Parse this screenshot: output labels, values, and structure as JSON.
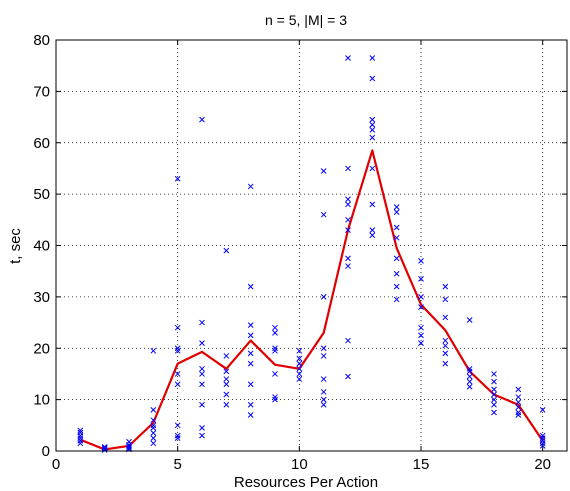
{
  "chart_data": {
    "type": "scatter",
    "title": "n = 5, |M| = 3",
    "xlabel": "Resources Per Action",
    "ylabel": "t, sec",
    "xlim": [
      0,
      21
    ],
    "ylim": [
      0,
      80
    ],
    "xticks": [
      0,
      5,
      10,
      15,
      20
    ],
    "yticks": [
      0,
      10,
      20,
      30,
      40,
      50,
      60,
      70,
      80
    ],
    "grid": true,
    "colors": {
      "points": "#0000ff",
      "line": "#e00000"
    },
    "series": [
      {
        "type": "scatter",
        "marker": "x",
        "points": [
          [
            1,
            1.5
          ],
          [
            1,
            2.0
          ],
          [
            1,
            2.5
          ],
          [
            1,
            3.0
          ],
          [
            1,
            3.6
          ],
          [
            1,
            4.0
          ],
          [
            2,
            0.2
          ],
          [
            2,
            0.4
          ],
          [
            2,
            0.6
          ],
          [
            2,
            0.8
          ],
          [
            3,
            0.3
          ],
          [
            3,
            0.6
          ],
          [
            3,
            0.9
          ],
          [
            3,
            1.2
          ],
          [
            3,
            1.8
          ],
          [
            4,
            1.5
          ],
          [
            4,
            2.5
          ],
          [
            4,
            3.5
          ],
          [
            4,
            4.5
          ],
          [
            4,
            5.0
          ],
          [
            4,
            6.0
          ],
          [
            4,
            8.0
          ],
          [
            4,
            19.5
          ],
          [
            5,
            2.5
          ],
          [
            5,
            3.0
          ],
          [
            5,
            5.0
          ],
          [
            5,
            13.0
          ],
          [
            5,
            15.0
          ],
          [
            5,
            19.5
          ],
          [
            5,
            20.0
          ],
          [
            5,
            24.0
          ],
          [
            5,
            53.0
          ],
          [
            6,
            3.0
          ],
          [
            6,
            4.5
          ],
          [
            6,
            9.0
          ],
          [
            6,
            13.0
          ],
          [
            6,
            15.0
          ],
          [
            6,
            16.0
          ],
          [
            6,
            21.0
          ],
          [
            6,
            25.0
          ],
          [
            6,
            64.5
          ],
          [
            7,
            9.0
          ],
          [
            7,
            11.0
          ],
          [
            7,
            13.0
          ],
          [
            7,
            14.0
          ],
          [
            7,
            15.5
          ],
          [
            7,
            18.5
          ],
          [
            7,
            39.0
          ],
          [
            8,
            7.0
          ],
          [
            8,
            9.0
          ],
          [
            8,
            13.0
          ],
          [
            8,
            17.0
          ],
          [
            8,
            19.0
          ],
          [
            8,
            22.5
          ],
          [
            8,
            24.5
          ],
          [
            8,
            32.0
          ],
          [
            8,
            51.5
          ],
          [
            9,
            10.0
          ],
          [
            9,
            10.5
          ],
          [
            9,
            15.0
          ],
          [
            9,
            19.5
          ],
          [
            9,
            20.0
          ],
          [
            9,
            23.0
          ],
          [
            9,
            24.0
          ],
          [
            10,
            14.0
          ],
          [
            10,
            15.0
          ],
          [
            10,
            16.0
          ],
          [
            10,
            17.0
          ],
          [
            10,
            18.0
          ],
          [
            10,
            19.5
          ],
          [
            11,
            9.0
          ],
          [
            11,
            10.0
          ],
          [
            11,
            11.5
          ],
          [
            11,
            14.0
          ],
          [
            11,
            18.5
          ],
          [
            11,
            20.0
          ],
          [
            11,
            30.0
          ],
          [
            11,
            46.0
          ],
          [
            11,
            54.5
          ],
          [
            12,
            14.5
          ],
          [
            12,
            21.5
          ],
          [
            12,
            36.0
          ],
          [
            12,
            37.5
          ],
          [
            12,
            43.0
          ],
          [
            12,
            45.0
          ],
          [
            12,
            48.0
          ],
          [
            12,
            49.0
          ],
          [
            12,
            55.0
          ],
          [
            12,
            76.5
          ],
          [
            13,
            42.0
          ],
          [
            13,
            43.0
          ],
          [
            13,
            48.0
          ],
          [
            13,
            55.0
          ],
          [
            13,
            61.0
          ],
          [
            13,
            62.5
          ],
          [
            13,
            63.5
          ],
          [
            13,
            64.5
          ],
          [
            13,
            72.5
          ],
          [
            13,
            76.5
          ],
          [
            14,
            29.5
          ],
          [
            14,
            32.0
          ],
          [
            14,
            34.5
          ],
          [
            14,
            37.5
          ],
          [
            14,
            41.5
          ],
          [
            14,
            43.5
          ],
          [
            14,
            46.5
          ],
          [
            14,
            47.5
          ],
          [
            15,
            21.0
          ],
          [
            15,
            22.5
          ],
          [
            15,
            24.0
          ],
          [
            15,
            28.0
          ],
          [
            15,
            30.0
          ],
          [
            15,
            33.5
          ],
          [
            15,
            37.0
          ],
          [
            16,
            17.0
          ],
          [
            16,
            19.0
          ],
          [
            16,
            20.5
          ],
          [
            16,
            21.5
          ],
          [
            16,
            26.0
          ],
          [
            16,
            29.5
          ],
          [
            16,
            32.0
          ],
          [
            17,
            12.5
          ],
          [
            17,
            13.5
          ],
          [
            17,
            14.5
          ],
          [
            17,
            15.5
          ],
          [
            17,
            16.0
          ],
          [
            17,
            25.5
          ],
          [
            18,
            7.5
          ],
          [
            18,
            9.0
          ],
          [
            18,
            10.0
          ],
          [
            18,
            11.0
          ],
          [
            18,
            12.0
          ],
          [
            18,
            13.5
          ],
          [
            18,
            15.0
          ],
          [
            19,
            7.0
          ],
          [
            19,
            7.5
          ],
          [
            19,
            8.5
          ],
          [
            19,
            9.5
          ],
          [
            19,
            10.5
          ],
          [
            19,
            12.0
          ],
          [
            20,
            1.0
          ],
          [
            20,
            1.5
          ],
          [
            20,
            2.0
          ],
          [
            20,
            2.5
          ],
          [
            20,
            3.0
          ],
          [
            20,
            8.0
          ]
        ]
      },
      {
        "type": "line",
        "x": [
          1,
          2,
          3,
          4,
          5,
          6,
          7,
          8,
          9,
          10,
          11,
          12,
          13,
          14,
          15,
          16,
          17,
          18,
          19,
          20
        ],
        "y": [
          2.2,
          0.3,
          1.0,
          5.5,
          17.0,
          19.3,
          16.0,
          21.5,
          16.8,
          16.0,
          23.0,
          43.0,
          58.5,
          39.5,
          28.5,
          23.5,
          15.5,
          11.0,
          9.0,
          2.0
        ]
      }
    ]
  }
}
